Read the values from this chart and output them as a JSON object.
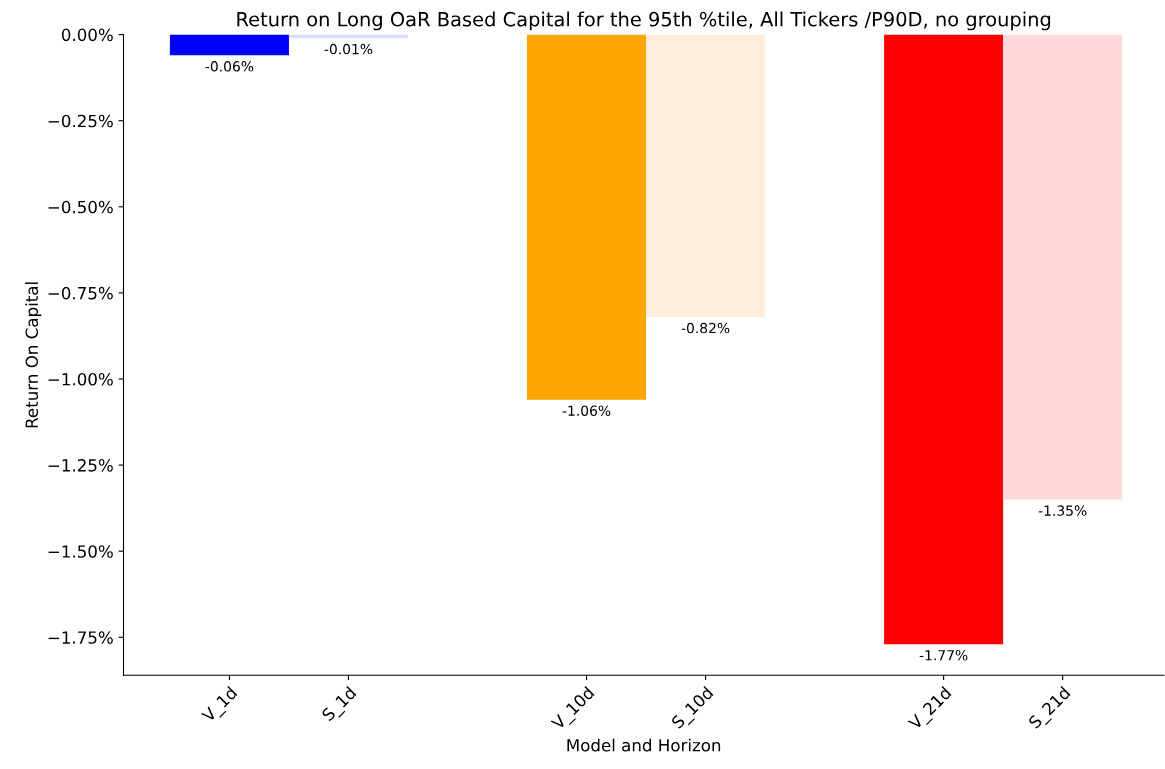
{
  "chart_data": {
    "type": "bar",
    "title": "Return on Long OaR Based Capital for the 95th %tile, All Tickers /P90D, no grouping",
    "xlabel": "Model and Horizon",
    "ylabel": "Return On Capital",
    "categories": [
      "V_1d",
      "S_1d",
      null,
      "V_10d",
      "S_10d",
      null,
      "V_21d",
      "S_21d"
    ],
    "values": [
      -0.06,
      -0.01,
      null,
      -1.06,
      -0.82,
      null,
      -1.77,
      -1.35
    ],
    "colors": [
      "#0000ff",
      "#dcdcff",
      null,
      "#ffa500",
      "#ffeedb",
      null,
      "#ff0000",
      "#ffd9d9"
    ],
    "value_labels": [
      "-0.06%",
      "-0.01%",
      null,
      "-1.06%",
      "-0.82%",
      null,
      "-1.77%",
      "-1.35%"
    ],
    "ylim": [
      -1.86,
      0
    ],
    "yticks": [
      {
        "value": 0,
        "label": "0.00%"
      },
      {
        "value": -0.25,
        "label": "−0.25%"
      },
      {
        "value": -0.5,
        "label": "−0.50%"
      },
      {
        "value": -0.75,
        "label": "−0.75%"
      },
      {
        "value": -1.0,
        "label": "−1.00%"
      },
      {
        "value": -1.25,
        "label": "−1.25%"
      },
      {
        "value": -1.5,
        "label": "−1.50%"
      },
      {
        "value": -1.75,
        "label": "−1.75%"
      }
    ],
    "grid": false,
    "legend": false
  }
}
